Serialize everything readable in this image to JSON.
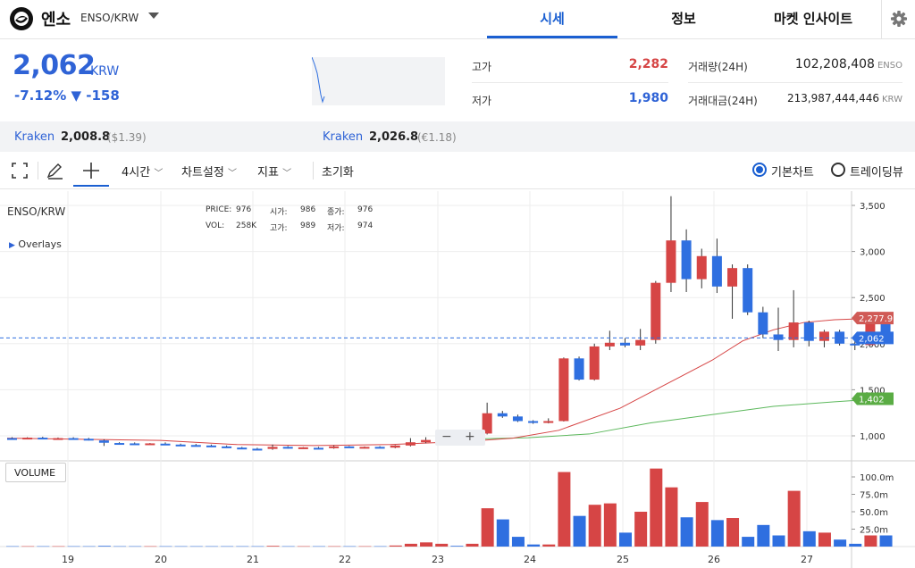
{
  "header": {
    "coin_name": "엔소",
    "coin_pair": "ENSO/KRW",
    "tabs": [
      {
        "label": "시세",
        "active": true
      },
      {
        "label": "정보",
        "active": false
      },
      {
        "label": "마켓 인사이트",
        "active": false
      }
    ]
  },
  "price_panel": {
    "price": "2,062",
    "unit": "KRW",
    "change_pct": "-7.12%",
    "change_abs": "▼ -158",
    "high_label": "고가",
    "high_value": "2,282",
    "low_label": "저가",
    "low_value": "1,980",
    "volume_label": "거래량(24H)",
    "volume_value": "102,208,408",
    "volume_unit": "ENSO",
    "turnover_label": "거래대금(24H)",
    "turnover_value": "213,987,444,446",
    "turnover_unit": "KRW"
  },
  "exchanges": [
    {
      "name": "Kraken",
      "value": "2,008.8",
      "sub": "($1.39)"
    },
    {
      "name": "Kraken",
      "value": "2,026.8",
      "sub": "(€1.18)"
    }
  ],
  "toolbar": {
    "interval": "4시간",
    "chart_settings": "차트설정",
    "indicators": "지표",
    "reset": "초기화",
    "mode_basic": "기본차트",
    "mode_tradingview": "트레이딩뷰"
  },
  "chart_info": {
    "symbol": "ENSO/KRW",
    "overlays": "Overlays",
    "price_label": "PRICE:",
    "price_val": "976",
    "open_label": "시가:",
    "open_val": "986",
    "close_label": "종가:",
    "close_val": "976",
    "vol_label": "VOL:",
    "vol_val": "258K",
    "high_label": "고가:",
    "high_val": "989",
    "low_label": "저가:",
    "low_val": "974",
    "volume_button": "VOLUME",
    "zoom_out": "−",
    "zoom_in": "+",
    "badge_ma_red": "2,277.9",
    "badge_price": "2,062",
    "badge_ma_green": "1,402"
  },
  "chart_data": {
    "type": "candlestick",
    "x_ticks": [
      "19",
      "20",
      "21",
      "22",
      "23",
      "24",
      "25",
      "26",
      "27"
    ],
    "y_ticks": [
      "1,000",
      "1,500",
      "2,000",
      "2,500",
      "3,000",
      "3,500"
    ],
    "y_tick_values": [
      1000,
      1500,
      2000,
      2500,
      3000,
      3500
    ],
    "ylim": [
      900,
      3600
    ],
    "volume_ticks": [
      "25.0m",
      "50.0m",
      "75.0m",
      "100.0m"
    ],
    "volume_tick_values": [
      25,
      50,
      75,
      100
    ],
    "volume_ylim": [
      0,
      110
    ],
    "colors": {
      "up": "#d64545",
      "down": "#2f6fe0",
      "ma_short": "#d64545",
      "ma_long": "#5cb85c"
    },
    "candles": [
      {
        "o": 975,
        "h": 985,
        "l": 968,
        "c": 970,
        "v": 0.5
      },
      {
        "o": 970,
        "h": 985,
        "l": 962,
        "c": 980,
        "v": 0.5
      },
      {
        "o": 980,
        "h": 990,
        "l": 965,
        "c": 970,
        "v": 0.5
      },
      {
        "o": 970,
        "h": 982,
        "l": 962,
        "c": 975,
        "v": 0.5
      },
      {
        "o": 975,
        "h": 985,
        "l": 960,
        "c": 968,
        "v": 0.5
      },
      {
        "o": 968,
        "h": 978,
        "l": 950,
        "c": 955,
        "v": 0.5
      },
      {
        "o": 950,
        "h": 962,
        "l": 890,
        "c": 925,
        "v": 1.0
      },
      {
        "o": 922,
        "h": 930,
        "l": 912,
        "c": 915,
        "v": 0.5
      },
      {
        "o": 918,
        "h": 928,
        "l": 905,
        "c": 910,
        "v": 0.5
      },
      {
        "o": 910,
        "h": 922,
        "l": 902,
        "c": 918,
        "v": 0.5
      },
      {
        "o": 915,
        "h": 928,
        "l": 902,
        "c": 905,
        "v": 0.5
      },
      {
        "o": 905,
        "h": 915,
        "l": 892,
        "c": 900,
        "v": 0.5
      },
      {
        "o": 900,
        "h": 912,
        "l": 890,
        "c": 895,
        "v": 0.5
      },
      {
        "o": 895,
        "h": 905,
        "l": 878,
        "c": 885,
        "v": 0.5
      },
      {
        "o": 885,
        "h": 895,
        "l": 868,
        "c": 872,
        "v": 0.5
      },
      {
        "o": 872,
        "h": 880,
        "l": 860,
        "c": 862,
        "v": 0.5
      },
      {
        "o": 860,
        "h": 870,
        "l": 850,
        "c": 858,
        "v": 0.5
      },
      {
        "o": 858,
        "h": 905,
        "l": 848,
        "c": 880,
        "v": 1.0
      },
      {
        "o": 880,
        "h": 890,
        "l": 860,
        "c": 868,
        "v": 0.5
      },
      {
        "o": 868,
        "h": 878,
        "l": 858,
        "c": 875,
        "v": 0.5
      },
      {
        "o": 870,
        "h": 880,
        "l": 862,
        "c": 868,
        "v": 0.5
      },
      {
        "o": 868,
        "h": 895,
        "l": 860,
        "c": 885,
        "v": 0.5
      },
      {
        "o": 885,
        "h": 890,
        "l": 870,
        "c": 875,
        "v": 0.5
      },
      {
        "o": 875,
        "h": 885,
        "l": 862,
        "c": 880,
        "v": 0.5
      },
      {
        "o": 880,
        "h": 888,
        "l": 868,
        "c": 872,
        "v": 0.5
      },
      {
        "o": 872,
        "h": 900,
        "l": 865,
        "c": 895,
        "v": 1.5
      },
      {
        "o": 895,
        "h": 975,
        "l": 885,
        "c": 930,
        "v": 4.0
      },
      {
        "o": 930,
        "h": 985,
        "l": 920,
        "c": 955,
        "v": 6.0
      },
      {
        "o": 955,
        "h": 1010,
        "l": 945,
        "c": 985,
        "v": 4.0
      },
      {
        "o": 985,
        "h": 1000,
        "l": 950,
        "c": 965,
        "v": 1.0
      },
      {
        "o": 965,
        "h": 1045,
        "l": 960,
        "c": 1025,
        "v": 4.0
      },
      {
        "o": 1025,
        "h": 1360,
        "l": 1015,
        "c": 1245,
        "v": 55.0
      },
      {
        "o": 1245,
        "h": 1270,
        "l": 1195,
        "c": 1210,
        "v": 39.0
      },
      {
        "o": 1210,
        "h": 1230,
        "l": 1150,
        "c": 1160,
        "v": 14.0
      },
      {
        "o": 1160,
        "h": 1170,
        "l": 1130,
        "c": 1140,
        "v": 3.0
      },
      {
        "o": 1140,
        "h": 1190,
        "l": 1135,
        "c": 1160,
        "v": 3.0
      },
      {
        "o": 1160,
        "h": 1850,
        "l": 1155,
        "c": 1840,
        "v": 107.0
      },
      {
        "o": 1840,
        "h": 1860,
        "l": 1600,
        "c": 1610,
        "v": 44.0
      },
      {
        "o": 1610,
        "h": 2000,
        "l": 1600,
        "c": 1970,
        "v": 60.0
      },
      {
        "o": 1970,
        "h": 2140,
        "l": 1930,
        "c": 2010,
        "v": 62.0
      },
      {
        "o": 2010,
        "h": 2060,
        "l": 1960,
        "c": 1980,
        "v": 20.0
      },
      {
        "o": 1980,
        "h": 2160,
        "l": 1930,
        "c": 2040,
        "v": 50.0
      },
      {
        "o": 2040,
        "h": 2680,
        "l": 2000,
        "c": 2660,
        "v": 112.0
      },
      {
        "o": 2660,
        "h": 3600,
        "l": 2560,
        "c": 3120,
        "v": 85.0
      },
      {
        "o": 3120,
        "h": 3240,
        "l": 2560,
        "c": 2700,
        "v": 42.0
      },
      {
        "o": 2700,
        "h": 3030,
        "l": 2600,
        "c": 2950,
        "v": 64.0
      },
      {
        "o": 2950,
        "h": 3140,
        "l": 2550,
        "c": 2620,
        "v": 38.0
      },
      {
        "o": 2620,
        "h": 2860,
        "l": 2270,
        "c": 2820,
        "v": 41.0
      },
      {
        "o": 2820,
        "h": 2860,
        "l": 2310,
        "c": 2340,
        "v": 14.0
      },
      {
        "o": 2340,
        "h": 2400,
        "l": 2060,
        "c": 2100,
        "v": 31.0
      },
      {
        "o": 2100,
        "h": 2390,
        "l": 1920,
        "c": 2040,
        "v": 16.0
      },
      {
        "o": 2040,
        "h": 2580,
        "l": 1960,
        "c": 2230,
        "v": 80.0
      },
      {
        "o": 2230,
        "h": 2250,
        "l": 1970,
        "c": 2030,
        "v": 22.0
      },
      {
        "o": 2030,
        "h": 2150,
        "l": 1960,
        "c": 2130,
        "v": 20.0
      },
      {
        "o": 2130,
        "h": 2150,
        "l": 1980,
        "c": 2000,
        "v": 10.0
      },
      {
        "o": 2000,
        "h": 2030,
        "l": 1930,
        "c": 1985,
        "v": 4.0
      },
      {
        "o": 1985,
        "h": 2270,
        "l": 1980,
        "c": 2270,
        "v": 16.0
      },
      {
        "o": 2270,
        "h": 2280,
        "l": 2060,
        "c": 2062,
        "v": 16.0
      }
    ],
    "ma_short": [
      [
        0,
        975
      ],
      [
        10,
        950
      ],
      [
        15,
        905
      ],
      [
        20,
        895
      ],
      [
        25,
        905
      ],
      [
        30,
        940
      ],
      [
        33,
        975
      ],
      [
        36,
        1060
      ],
      [
        40,
        1300
      ],
      [
        43,
        1560
      ],
      [
        46,
        1820
      ],
      [
        48,
        2030
      ],
      [
        50,
        2150
      ],
      [
        52,
        2230
      ],
      [
        54,
        2260
      ],
      [
        57,
        2278
      ]
    ],
    "ma_long": [
      [
        30,
        965
      ],
      [
        34,
        980
      ],
      [
        38,
        1020
      ],
      [
        42,
        1140
      ],
      [
        46,
        1230
      ],
      [
        50,
        1320
      ],
      [
        54,
        1370
      ],
      [
        57,
        1402
      ]
    ]
  }
}
